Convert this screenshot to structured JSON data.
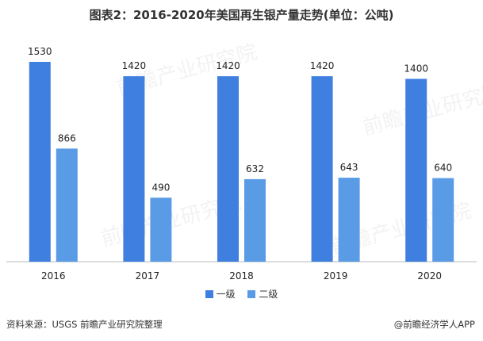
{
  "title": "图表2：2016-2020年美国再生银产量走势(单位：公吨)",
  "source": "资料来源：USGS 前瞻产业研究院整理",
  "brand": "@前瞻经济学人APP",
  "watermark": "前瞻产业研究院",
  "colors": {
    "first": "#3f7fe0",
    "second": "#5a9be6"
  },
  "chart_data": {
    "type": "bar",
    "title": "图表2：2016-2020年美国再生银产量走势(单位：公吨)",
    "categories": [
      "2016",
      "2017",
      "2018",
      "2019",
      "2020"
    ],
    "series": [
      {
        "name": "一级",
        "values": [
          1530,
          1420,
          1420,
          1420,
          1400
        ]
      },
      {
        "name": "二级",
        "values": [
          866,
          490,
          632,
          643,
          640
        ]
      }
    ],
    "ylim": [
      0,
      1700
    ],
    "grid": false,
    "legend": "bottom",
    "data_labels": true
  }
}
